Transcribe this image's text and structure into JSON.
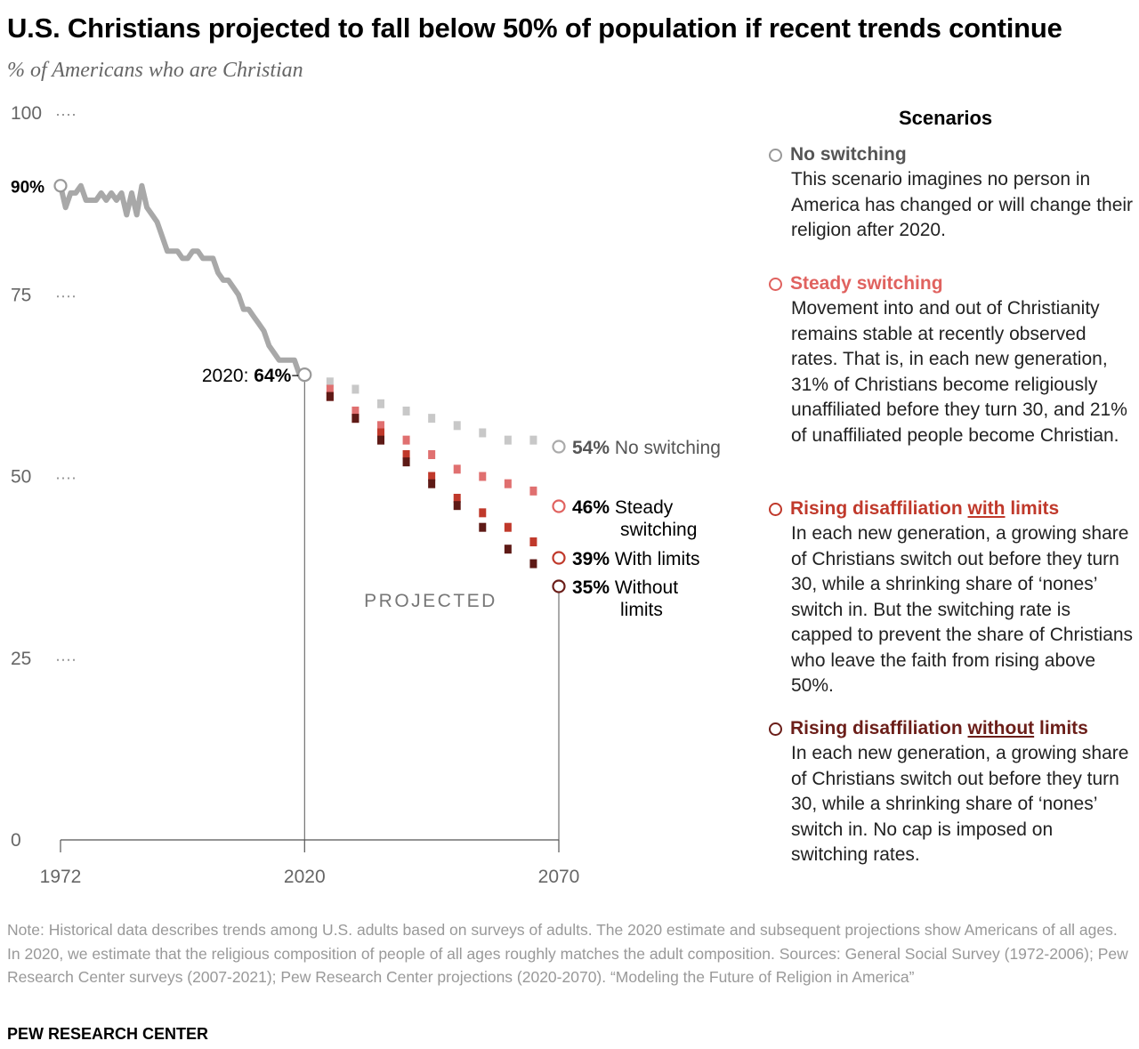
{
  "title": "U.S. Christians projected to fall below 50% of population if recent trends continue",
  "subtitle": "% of Americans who are Christian",
  "chart_data": {
    "type": "line",
    "title": "U.S. Christians projected to fall below 50% of population if recent trends continue",
    "ylabel": "% of Americans who are Christian",
    "ylim": [
      0,
      100
    ],
    "xlim": [
      1972,
      2070
    ],
    "y_ticks": [
      "100",
      "75",
      "50",
      "25",
      "0"
    ],
    "y_tick_values": [
      100,
      75,
      50,
      25,
      0
    ],
    "x_ticks": [
      "1972",
      "2020",
      "2070"
    ],
    "x_tick_values": [
      1972,
      2020,
      2070
    ],
    "grid": false,
    "legend_placement": "right",
    "historical": {
      "x": [
        1972,
        1973,
        1974,
        1975,
        1976,
        1977,
        1978,
        1979,
        1980,
        1981,
        1982,
        1983,
        1984,
        1985,
        1986,
        1987,
        1988,
        1989,
        1990,
        1991,
        1992,
        1993,
        1994,
        1995,
        1996,
        1997,
        1998,
        1999,
        2000,
        2001,
        2002,
        2003,
        2004,
        2005,
        2006,
        2007,
        2008,
        2009,
        2010,
        2011,
        2012,
        2013,
        2014,
        2015,
        2016,
        2017,
        2018,
        2019,
        2020
      ],
      "y": [
        90,
        87,
        89,
        89,
        90,
        88,
        88,
        88,
        89,
        88,
        89,
        88,
        89,
        86,
        89,
        86,
        90,
        87,
        86,
        85,
        83,
        81,
        81,
        81,
        80,
        80,
        81,
        81,
        80,
        80,
        80,
        78,
        77,
        77,
        76,
        75,
        73,
        73,
        72,
        71,
        70,
        68,
        67,
        66,
        66,
        66,
        66,
        64,
        64
      ]
    },
    "annotation_2020": "2020: ",
    "annotation_2020_value": "64%",
    "start_label": "90%",
    "projected_label": "PROJECTED",
    "projection_x": [
      2025,
      2030,
      2035,
      2040,
      2045,
      2050,
      2055,
      2060,
      2065
    ],
    "series": [
      {
        "name": "No switching",
        "color": "#c8c8c8",
        "values": [
          63,
          62,
          60,
          59,
          58,
          57,
          56,
          55,
          55
        ],
        "end_value": "54%",
        "end_label": [
          "No switching"
        ],
        "end": 54
      },
      {
        "name": "Steady switching",
        "color": "#e07070",
        "values": [
          62,
          59,
          57,
          55,
          53,
          51,
          50,
          49,
          48
        ],
        "end_value": "46%",
        "end_label": [
          "Steady",
          "switching"
        ],
        "end": 46
      },
      {
        "name": "Rising disaffiliation with limits",
        "color": "#c0392b",
        "values": [
          61,
          58,
          56,
          53,
          50,
          47,
          45,
          43,
          41
        ],
        "end_value": "39%",
        "end_label": [
          "With limits"
        ],
        "end": 39
      },
      {
        "name": "Rising disaffiliation without limits",
        "color": "#5e1a16",
        "values": [
          61,
          58,
          55,
          52,
          49,
          46,
          43,
          40,
          38
        ],
        "end_value": "35%",
        "end_label": [
          "Without",
          "limits"
        ],
        "end": 35
      }
    ]
  },
  "legend": {
    "heading": "Scenarios",
    "items": [
      {
        "name": "no-switching",
        "pre": "No switching",
        "underlined": "",
        "post": "",
        "color": "#555555",
        "ring": "#999999",
        "desc": "This scenario imagines no person in America has changed or will change their religion after 2020."
      },
      {
        "name": "steady-switching",
        "pre": "Steady switching",
        "underlined": "",
        "post": "",
        "color": "#e0625f",
        "ring": "#e0625f",
        "desc": "Movement into and out of Christianity remains stable at recently observed rates. That is, in each new generation, 31% of Christians become religiously unaffiliated before they turn 30, and 21% of unaffiliated people become Christian."
      },
      {
        "name": "with-limits",
        "pre": "Rising disaffiliation ",
        "underlined": "with",
        "post": " limits",
        "color": "#c0392b",
        "ring": "#c0392b",
        "desc": "In each new generation, a growing share of Christians switch out before they turn 30, while a shrinking share of ‘nones’ switch in. But the switching rate is capped to prevent the share of Christians who leave the faith from rising above 50%."
      },
      {
        "name": "without-limits",
        "pre": "Rising disaffiliation ",
        "underlined": "without",
        "post": " limits",
        "color": "#6b1e19",
        "ring": "#6b1e19",
        "desc": "In each new generation, a growing share of Christians switch out before they turn 30, while a shrinking share of ‘nones’ switch in. No cap is imposed on switching rates."
      }
    ]
  },
  "footnote": "Note: Historical data describes trends among U.S. adults based on surveys of adults. The 2020 estimate and subsequent projections show Americans of all ages. In 2020, we estimate that the religious composition of people of all ages roughly matches the adult composition. Sources: General Social Survey (1972-2006); Pew Research Center surveys (2007-2021); Pew Research Center projections (2020-2070). “Modeling the Future of Religion in America”",
  "source": "PEW RESEARCH CENTER"
}
